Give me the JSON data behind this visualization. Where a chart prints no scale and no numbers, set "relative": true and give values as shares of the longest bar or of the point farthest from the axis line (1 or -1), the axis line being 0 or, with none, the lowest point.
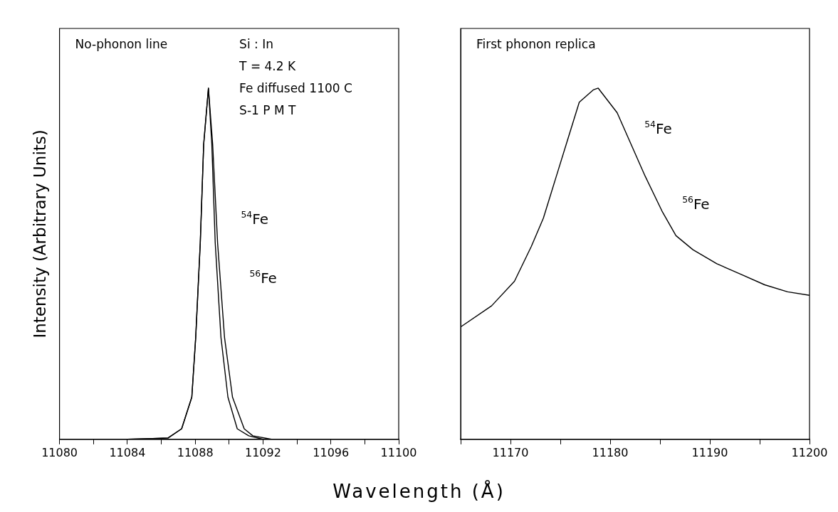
{
  "chart_data": [
    {
      "type": "line",
      "title": "No-phonon line",
      "xlabel": "Wavelength (Å)",
      "ylabel": "Intensity (Arbitrary Units)",
      "relative": true,
      "tick_labels": "x",
      "xlim": [
        11080,
        11100
      ],
      "xticks": [
        11080,
        {
          "value": 11082,
          "label": null
        },
        11084,
        {
          "value": 11086,
          "label": null
        },
        11088,
        {
          "value": 11090,
          "label": null
        },
        11092,
        {
          "value": 11094,
          "label": null
        },
        11096,
        {
          "value": 11098,
          "label": null
        },
        11100
      ],
      "annotations": [
        "Si : In",
        "T = 4.2 K",
        "Fe diffused 1100 C",
        "S-1 P M T"
      ],
      "series": [
        {
          "name": "$^{54}$Fe",
          "color": "#000000",
          "x": [
            11080,
            11084,
            11085.5,
            11086.4,
            11087.2,
            11087.8,
            11088.03,
            11088.3,
            11088.5,
            11088.78,
            11088.98,
            11089.18,
            11089.52,
            11089.93,
            11090.48,
            11091.16,
            11092,
            11100
          ],
          "values": [
            0,
            0,
            0.002,
            0.004,
            0.03,
            0.12,
            0.29,
            0.56,
            0.84,
            1,
            0.84,
            0.56,
            0.29,
            0.12,
            0.03,
            0.01,
            0,
            0
          ]
        },
        {
          "name": "$^{56}$Fe",
          "color": "#000000",
          "x": [
            11080,
            11084,
            11085.5,
            11086.4,
            11087.2,
            11087.8,
            11088.03,
            11088.3,
            11088.5,
            11088.78,
            11089.03,
            11089.32,
            11089.73,
            11090.2,
            11090.89,
            11091.4,
            11092.5,
            11100
          ],
          "values": [
            0,
            0,
            0.002,
            0.004,
            0.03,
            0.12,
            0.29,
            0.56,
            0.84,
            1,
            0.84,
            0.56,
            0.29,
            0.12,
            0.03,
            0.01,
            0,
            0
          ]
        }
      ]
    },
    {
      "type": "line",
      "title": "First phonon replica",
      "relative": true,
      "tick_labels": "x",
      "xlim": [
        11165,
        11200
      ],
      "xticks": [
        {
          "value": 11165,
          "label": null
        },
        11170,
        {
          "value": 11175,
          "label": null
        },
        11180,
        {
          "value": 11185,
          "label": null
        },
        11190,
        {
          "value": 11195,
          "label": null
        },
        11200
      ],
      "annotations": [
        "$^{54}$Fe",
        "$^{56}$Fe"
      ],
      "series": [
        {
          "color": "#000000",
          "x": [
            11165,
            11168.1,
            11170.4,
            11172.1,
            11173.3,
            11174.5,
            11175.7,
            11176.9,
            11178.3,
            11178.8,
            11180.7,
            11182.1,
            11183.5,
            11185.2,
            11186.6,
            11188.3,
            11190.7,
            11193.1,
            11195.5,
            11197.8,
            11200
          ],
          "values": [
            0.32,
            0.38,
            0.45,
            0.55,
            0.63,
            0.74,
            0.85,
            0.96,
            0.995,
            1,
            0.93,
            0.84,
            0.75,
            0.65,
            0.58,
            0.54,
            0.5,
            0.47,
            0.44,
            0.42,
            0.41
          ]
        }
      ]
    }
  ]
}
